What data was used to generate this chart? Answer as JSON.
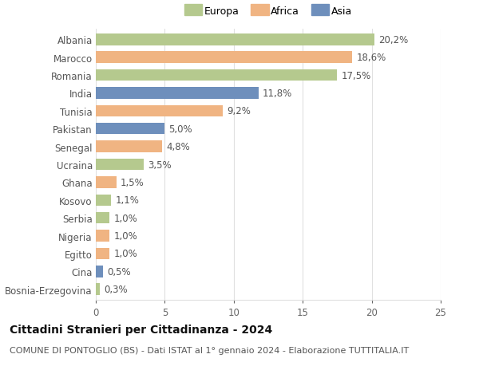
{
  "countries": [
    "Albania",
    "Marocco",
    "Romania",
    "India",
    "Tunisia",
    "Pakistan",
    "Senegal",
    "Ucraina",
    "Ghana",
    "Kosovo",
    "Serbia",
    "Nigeria",
    "Egitto",
    "Cina",
    "Bosnia-Erzegovina"
  ],
  "values": [
    20.2,
    18.6,
    17.5,
    11.8,
    9.2,
    5.0,
    4.8,
    3.5,
    1.5,
    1.1,
    1.0,
    1.0,
    1.0,
    0.5,
    0.3
  ],
  "labels": [
    "20,2%",
    "18,6%",
    "17,5%",
    "11,8%",
    "9,2%",
    "5,0%",
    "4,8%",
    "3,5%",
    "1,5%",
    "1,1%",
    "1,0%",
    "1,0%",
    "1,0%",
    "0,5%",
    "0,3%"
  ],
  "continents": [
    "Europa",
    "Africa",
    "Europa",
    "Asia",
    "Africa",
    "Asia",
    "Africa",
    "Europa",
    "Africa",
    "Europa",
    "Europa",
    "Africa",
    "Africa",
    "Asia",
    "Europa"
  ],
  "colors": {
    "Europa": "#b5c98e",
    "Africa": "#f0b482",
    "Asia": "#6e8fbc"
  },
  "title": "Cittadini Stranieri per Cittadinanza - 2024",
  "subtitle": "COMUNE DI PONTOGLIO (BS) - Dati ISTAT al 1° gennaio 2024 - Elaborazione TUTTITALIA.IT",
  "xlim": [
    0,
    25
  ],
  "xticks": [
    0,
    5,
    10,
    15,
    20,
    25
  ],
  "bg_color": "#ffffff",
  "grid_color": "#e0e0e0",
  "bar_height": 0.65,
  "label_fontsize": 8.5,
  "title_fontsize": 10,
  "subtitle_fontsize": 8,
  "ytick_fontsize": 8.5,
  "xtick_fontsize": 8.5
}
